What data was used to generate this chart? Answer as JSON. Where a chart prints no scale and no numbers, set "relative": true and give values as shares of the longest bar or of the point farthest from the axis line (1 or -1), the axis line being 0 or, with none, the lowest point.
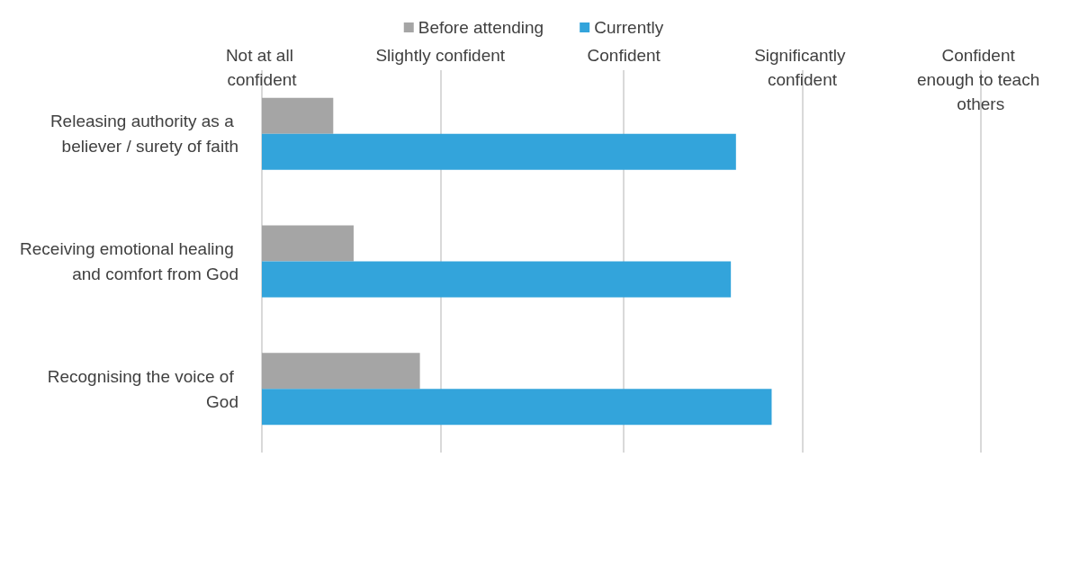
{
  "chart_data": {
    "type": "bar",
    "orientation": "horizontal",
    "relative": true,
    "categories": [
      "Releasing authority as a believer / surety of faith",
      "Receiving emotional healing and comfort from God",
      "Recognising the voice of God"
    ],
    "series": [
      {
        "name": "Before attending",
        "color": "#a5a5a5",
        "values": [
          0.14,
          0.18,
          0.31
        ]
      },
      {
        "name": "Currently",
        "color": "#33a4db",
        "values": [
          0.93,
          0.92,
          1
        ]
      }
    ],
    "ref_lines": [
      {
        "axis": "x",
        "value": 0,
        "label": "Not at all confident",
        "color": "#d9d9d9"
      },
      {
        "axis": "x",
        "value": 0.353,
        "label": "Slightly confident",
        "color": "#d9d9d9"
      },
      {
        "axis": "x",
        "value": 0.707,
        "label": "Confident",
        "color": "#d9d9d9"
      },
      {
        "axis": "x",
        "value": 1.06,
        "label": "Significantly confident",
        "color": "#d9d9d9"
      },
      {
        "axis": "x",
        "value": 1.414,
        "label": "Confident enough to teach others",
        "color": "#d9d9d9"
      }
    ],
    "legend": "top"
  }
}
